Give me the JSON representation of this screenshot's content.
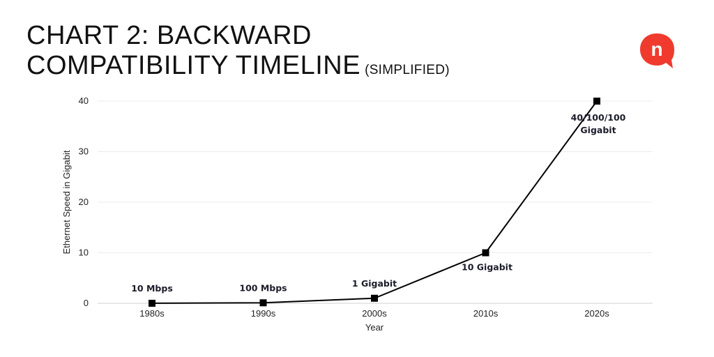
{
  "header": {
    "title_line1": "CHART 2: BACKWARD",
    "title_line2": "COMPATIBILITY TIMELINE",
    "subtitle": "(SIMPLIFIED)"
  },
  "logo": {
    "icon": "n-speech-bubble-logo",
    "letter": "n",
    "color": "#f03a2e"
  },
  "chart_data": {
    "type": "line",
    "categories": [
      "1980s",
      "1990s",
      "2000s",
      "2010s",
      "2020s"
    ],
    "series": [
      {
        "values": [
          0.01,
          0.1,
          1,
          10,
          40
        ],
        "color": "#000000",
        "marker": "square"
      }
    ],
    "data_labels": [
      "10 Mbps",
      "100 Mbps",
      "1 Gigabit",
      "10 Gigabit",
      "40/100/100 Gigabit"
    ],
    "xlabel": "Year",
    "ylabel": "Ethernet Speed in Gigabit",
    "ylim": [
      0,
      40
    ],
    "yticks": [
      "0",
      "10",
      "20",
      "30",
      "40"
    ],
    "grid": true
  }
}
